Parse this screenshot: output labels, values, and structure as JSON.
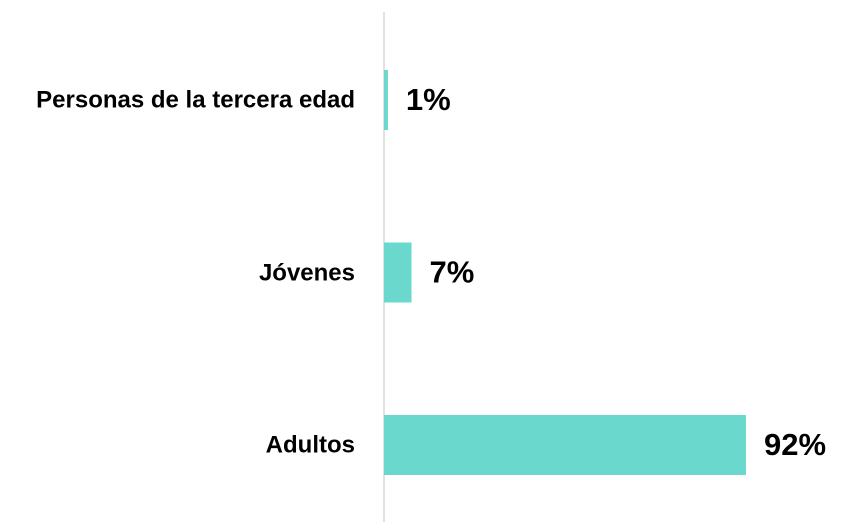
{
  "chart_data": {
    "type": "bar",
    "orientation": "horizontal",
    "categories": [
      "Personas de la tercera edad",
      "Jóvenes",
      "Adultos"
    ],
    "values": [
      1,
      7,
      92
    ],
    "value_labels": [
      "1%",
      "7%",
      "92%"
    ],
    "color": "#6ad8cc"
  }
}
